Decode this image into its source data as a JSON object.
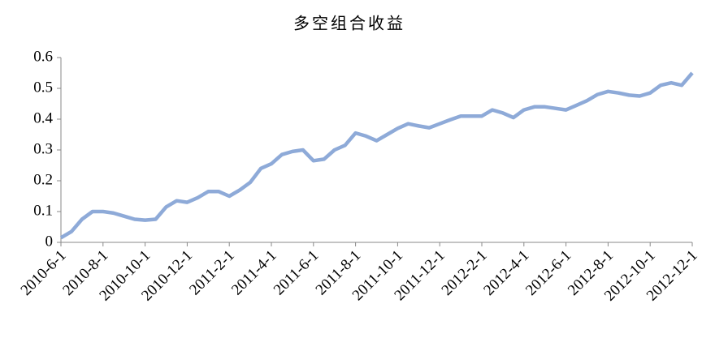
{
  "chart_data": {
    "type": "line",
    "title": "多空组合收益",
    "categories": [
      "2010-6-1",
      null,
      null,
      null,
      "2010-8-1",
      null,
      null,
      null,
      "2010-10-1",
      null,
      null,
      null,
      "2010-12-1",
      null,
      null,
      null,
      "2011-2-1",
      null,
      null,
      null,
      "2011-4-1",
      null,
      null,
      null,
      "2011-6-1",
      null,
      null,
      null,
      "2011-8-1",
      null,
      null,
      null,
      "2011-10-1",
      null,
      null,
      null,
      "2011-12-1",
      null,
      null,
      null,
      "2012-2-1",
      null,
      null,
      null,
      "2012-4-1",
      null,
      null,
      null,
      "2012-6-1",
      null,
      null,
      null,
      "2012-8-1",
      null,
      null,
      null,
      "2012-10-1",
      null,
      null,
      null,
      "2012-12-1"
    ],
    "series": [
      {
        "color": "#8eaad8",
        "values": [
          0.015,
          0.035,
          0.075,
          0.1,
          0.1,
          0.095,
          0.085,
          0.075,
          0.072,
          0.075,
          0.115,
          0.135,
          0.13,
          0.145,
          0.165,
          0.165,
          0.15,
          0.17,
          0.195,
          0.24,
          0.255,
          0.285,
          0.295,
          0.3,
          0.265,
          0.27,
          0.3,
          0.315,
          0.355,
          0.345,
          0.33,
          0.35,
          0.37,
          0.385,
          0.378,
          0.372,
          0.385,
          0.398,
          0.41,
          0.41,
          0.41,
          0.43,
          0.42,
          0.405,
          0.43,
          0.44,
          0.44,
          0.435,
          0.43,
          0.445,
          0.46,
          0.48,
          0.49,
          0.485,
          0.478,
          0.475,
          0.485,
          0.51,
          0.518,
          0.51,
          0.55
        ]
      }
    ],
    "ylim": [
      0,
      0.6
    ],
    "yticks": [
      0,
      0.1,
      0.2,
      0.3,
      0.4,
      0.5,
      0.6
    ],
    "grid": false
  }
}
